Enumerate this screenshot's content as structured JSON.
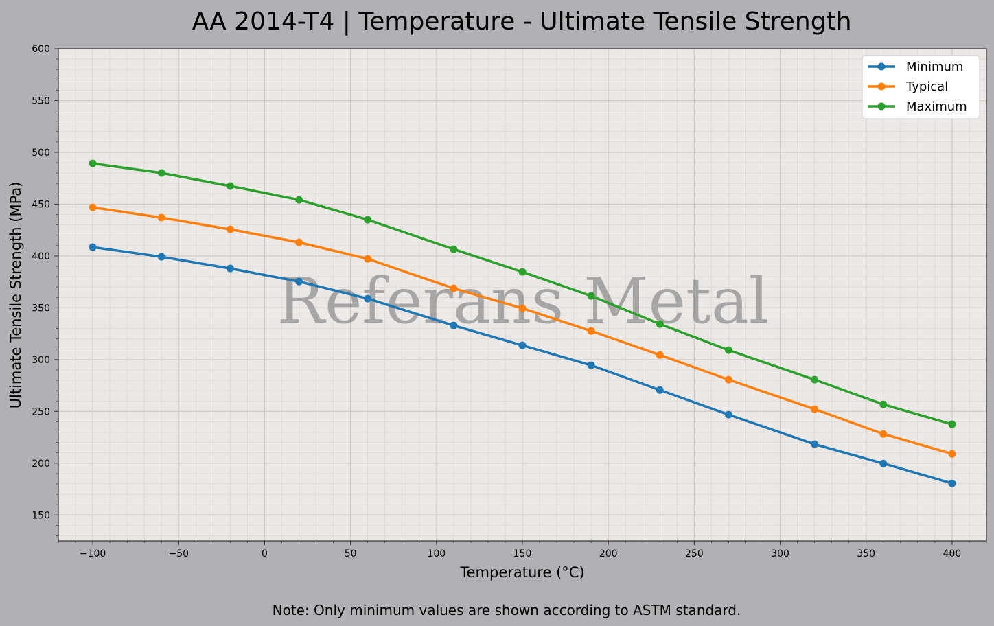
{
  "chart_data": {
    "type": "line",
    "title": "AA 2014-T4 | Temperature - Ultimate Tensile Strength",
    "xlabel": "Temperature (°C)",
    "ylabel": "Ultimate Tensile Strength (MPa)",
    "xlim": [
      -120,
      420
    ],
    "ylim": [
      125,
      600
    ],
    "xticks": [
      -100,
      -50,
      0,
      50,
      100,
      150,
      200,
      250,
      300,
      350,
      400
    ],
    "yticks": [
      150,
      200,
      250,
      300,
      350,
      400,
      450,
      500,
      550,
      600
    ],
    "grid": true,
    "minor_grid": true,
    "legend_position": "top-right",
    "x": [
      -100,
      -60,
      -20,
      20,
      60,
      110,
      150,
      190,
      230,
      270,
      320,
      360,
      400
    ],
    "series": [
      {
        "name": "Minimum",
        "color": "#1f77b4",
        "values": [
          408.5,
          399.2,
          387.9,
          375.3,
          358.8,
          332.9,
          313.7,
          294.5,
          270.6,
          246.8,
          218.3,
          199.7,
          180.5
        ]
      },
      {
        "name": "Typical",
        "color": "#ff7f0e",
        "values": [
          446.9,
          437.0,
          425.7,
          413.1,
          397.2,
          368.7,
          349.5,
          327.6,
          304.4,
          280.6,
          252.1,
          228.2,
          209.0
        ]
      },
      {
        "name": "Maximum",
        "color": "#2ca02c",
        "values": [
          489.3,
          480.1,
          467.5,
          454.2,
          435.0,
          406.5,
          384.6,
          361.4,
          334.3,
          309.1,
          280.6,
          256.7,
          237.5
        ]
      }
    ],
    "watermark": "Referans Metal",
    "note": "Note: Only minimum values are shown according to ASTM standard."
  }
}
